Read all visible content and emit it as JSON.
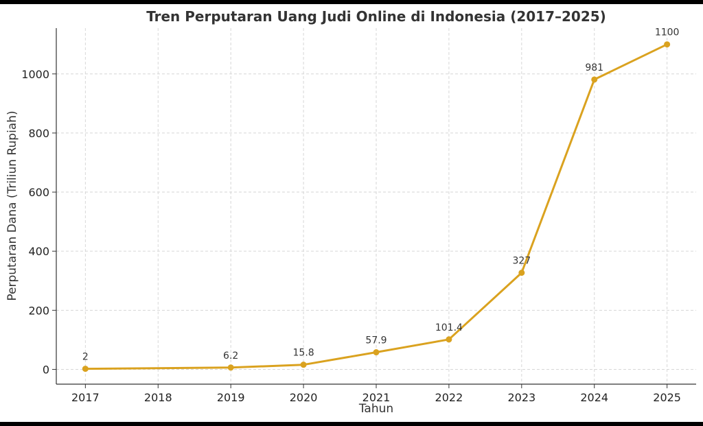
{
  "chart_data": {
    "type": "line",
    "title": "Tren Perputaran Uang Judi Online di Indonesia (2017–2025)",
    "xlabel": "Tahun",
    "ylabel": "Perputaran Dana (Triliun Rupiah)",
    "x_ticks": [
      "2017",
      "2018",
      "2019",
      "2020",
      "2021",
      "2022",
      "2023",
      "2024",
      "2025"
    ],
    "y_ticks": [
      "0",
      "200",
      "400",
      "600",
      "800",
      "1000"
    ],
    "xlim": [
      2016.6,
      2025.4
    ],
    "ylim": [
      -50,
      1155
    ],
    "grid": true,
    "series": [
      {
        "color": "#DAA21F",
        "points": [
          {
            "x": 2017,
            "y": 2,
            "label": "2"
          },
          {
            "x": 2019,
            "y": 6.2,
            "label": "6.2"
          },
          {
            "x": 2020,
            "y": 15.8,
            "label": "15.8"
          },
          {
            "x": 2021,
            "y": 57.9,
            "label": "57.9"
          },
          {
            "x": 2022,
            "y": 101.4,
            "label": "101.4"
          },
          {
            "x": 2023,
            "y": 327,
            "label": "327"
          },
          {
            "x": 2024,
            "y": 981,
            "label": "981"
          },
          {
            "x": 2025,
            "y": 1100,
            "label": "1100"
          }
        ]
      }
    ]
  }
}
